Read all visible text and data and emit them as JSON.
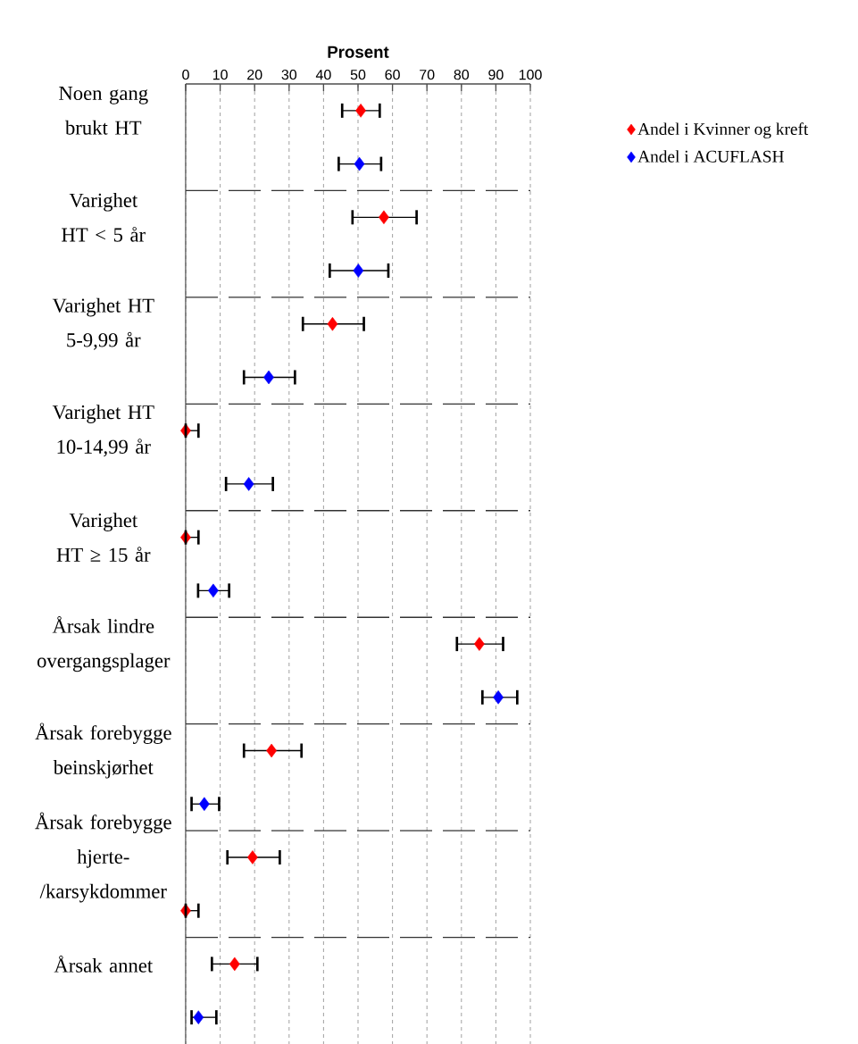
{
  "chart_data": {
    "type": "scatter",
    "orientation": "horizontal",
    "xlabel": "Prosent",
    "categories": [
      "Noen gang brukt HT",
      "Varighet HT < 5 år",
      "Varighet HT 5-9,99 år",
      "Varighet HT 10-14,99 år",
      "Varighet HT ≥ 15 år",
      "Årsak lindre overgangsplager",
      "Årsak forebygge beinskjørhet",
      "Årsak forebygge hjerte-/karsykdommer",
      "Årsak annet"
    ],
    "xlim": [
      0,
      100
    ],
    "xticks": [
      0,
      10,
      20,
      30,
      40,
      50,
      60,
      70,
      80,
      90,
      100
    ],
    "grid": true,
    "legend": "top right",
    "marker": "diamond",
    "series": [
      {
        "name": "Andel i Kvinner og kreft",
        "color": "#ff0000",
        "values": [
          50.8,
          57.5,
          42.6,
          0,
          0,
          85.2,
          24.9,
          19.4,
          14.2
        ],
        "errors": [
          [
            45.4,
            56.3
          ],
          [
            48.4,
            67.0
          ],
          [
            34.0,
            51.7
          ],
          [
            0,
            3.7
          ],
          [
            0,
            3.7
          ],
          [
            78.7,
            92.1
          ],
          [
            16.9,
            33.6
          ],
          [
            12.1,
            27.3
          ],
          [
            7.6,
            20.8
          ]
        ]
      },
      {
        "name": "Andel i ACUFLASH",
        "color": "#0000ff",
        "colors": [
          "#0000ff",
          "#0000ff",
          "#0000ff",
          "#0000ff",
          "#0000ff",
          "#0000ff",
          "#0000ff",
          "#ff0000",
          "#0000ff"
        ],
        "values": [
          50.4,
          50.1,
          24.1,
          18.3,
          8.0,
          90.7,
          5.4,
          0,
          3.7
        ],
        "errors": [
          [
            44.4,
            56.7
          ],
          [
            41.8,
            58.8
          ],
          [
            16.9,
            31.7
          ],
          [
            11.7,
            25.3
          ],
          [
            3.6,
            12.6
          ],
          [
            86.1,
            96.2
          ],
          [
            1.7,
            9.7
          ],
          [
            0,
            3.7
          ],
          [
            1.7,
            8.9
          ]
        ]
      }
    ]
  }
}
